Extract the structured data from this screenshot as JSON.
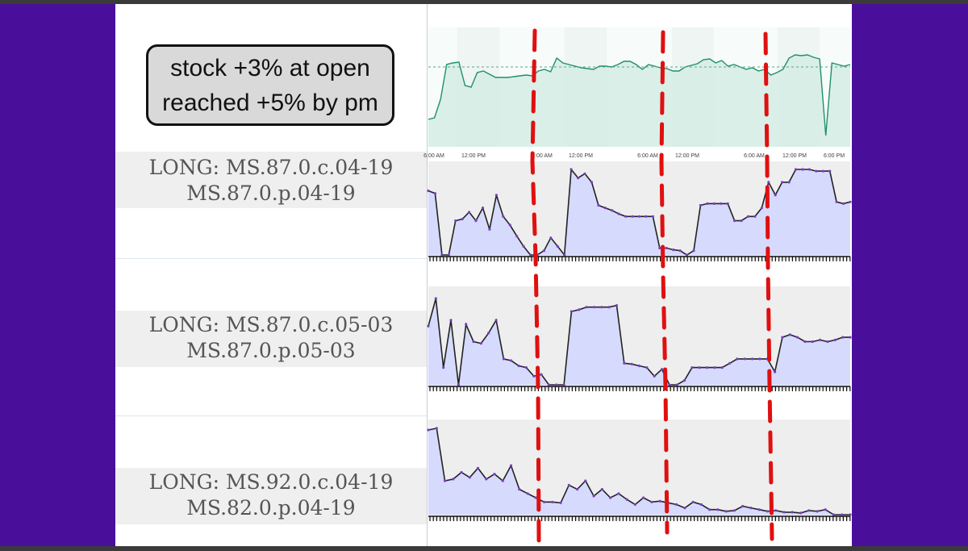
{
  "annotation": {
    "line1": "stock +3% at open",
    "line2": "reached +5% by pm"
  },
  "labels": [
    {
      "line1": "LONG: MS.87.0.c.04-19",
      "line2": "MS.87.0.p.04-19"
    },
    {
      "line1": "LONG: MS.87.0.c.05-03",
      "line2": "MS.87.0.p.05-03"
    },
    {
      "line1": "LONG: MS.92.0.c.04-19",
      "line2": "MS.82.0.p.04-19"
    }
  ],
  "colors": {
    "frame": "#4a0f9a",
    "stock_line": "#1f8f6e",
    "stock_fill": "#d5ece4",
    "option_fill": "#d6dafc",
    "option_line": "#222222",
    "option_dots": "#7a3fc4",
    "marker": "#e01010"
  },
  "chart_data": [
    {
      "type": "area",
      "x_tick_labels": [
        "6:00 AM",
        "12:00 PM",
        "6:00 AM",
        "12:00 PM",
        "6:00 AM",
        "12:00 PM",
        "6:00 AM",
        "12:00 PM",
        "6:00 PM"
      ],
      "reference_line": true,
      "y": [
        20,
        22,
        45,
        88,
        90,
        91,
        62,
        60,
        78,
        80,
        76,
        72,
        72,
        72,
        73,
        74,
        75,
        74,
        80,
        82,
        79,
        96,
        90,
        88,
        86,
        84,
        83,
        82,
        86,
        86,
        85,
        88,
        92,
        92,
        88,
        82,
        88,
        86,
        84,
        83,
        80,
        80,
        85,
        87,
        89,
        94,
        95,
        90,
        93,
        86,
        88,
        85,
        82,
        84,
        80,
        82,
        75,
        78,
        82,
        96,
        100,
        99,
        100,
        97,
        95,
        0,
        90,
        88,
        86,
        88
      ]
    },
    {
      "type": "line",
      "y": [
        75,
        72,
        0,
        0,
        40,
        42,
        50,
        40,
        55,
        30,
        70,
        45,
        35,
        22,
        10,
        0,
        0,
        5,
        20,
        10,
        0,
        100,
        90,
        95,
        85,
        58,
        55,
        52,
        48,
        45,
        45,
        45,
        45,
        45,
        8,
        8,
        6,
        5,
        0,
        5,
        58,
        60,
        60,
        60,
        60,
        40,
        40,
        45,
        45,
        55,
        85,
        70,
        85,
        85,
        100,
        100,
        100,
        98,
        98,
        98,
        62,
        60,
        62
      ]
    },
    {
      "type": "line",
      "y": [
        68,
        100,
        20,
        75,
        0,
        70,
        50,
        48,
        60,
        75,
        30,
        28,
        22,
        20,
        10,
        12,
        0,
        0,
        0,
        85,
        87,
        90,
        90,
        90,
        90,
        92,
        25,
        24,
        22,
        20,
        10,
        18,
        0,
        0,
        5,
        20,
        20,
        20,
        20,
        20,
        25,
        30,
        30,
        30,
        30,
        30,
        15,
        55,
        58,
        55,
        50,
        50,
        52,
        50,
        52,
        55,
        55
      ]
    },
    {
      "type": "line",
      "y": [
        100,
        102,
        40,
        42,
        50,
        44,
        55,
        42,
        48,
        40,
        58,
        30,
        25,
        20,
        15,
        15,
        14,
        35,
        30,
        40,
        22,
        30,
        20,
        25,
        18,
        12,
        20,
        15,
        16,
        14,
        12,
        8,
        15,
        12,
        6,
        6,
        4,
        5,
        10,
        8,
        6,
        4,
        5,
        3,
        3,
        2,
        5,
        4,
        6,
        0,
        0,
        0
      ]
    }
  ]
}
